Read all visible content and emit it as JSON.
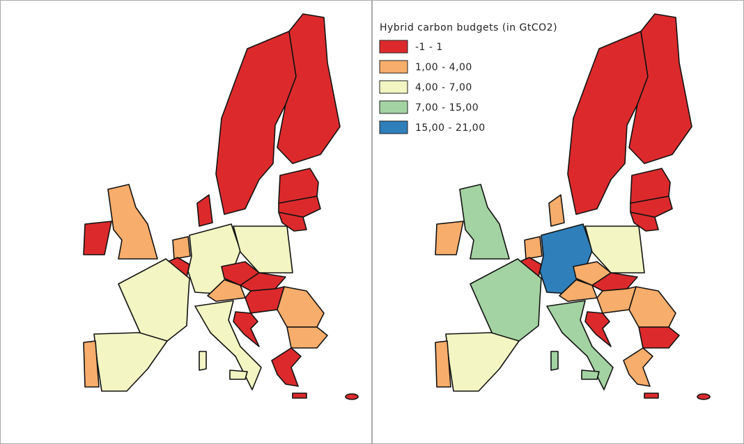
{
  "legend": {
    "title": "Hybrid carbon budgets (in GtCO2)",
    "classes": [
      {
        "label": "-1 - 1",
        "color": "#dc2a2c"
      },
      {
        "label": "1,00 - 4,00",
        "color": "#f7ad6b"
      },
      {
        "label": "4,00 - 7,00",
        "color": "#f3f5c2"
      },
      {
        "label": "7,00 - 15,00",
        "color": "#a3d3a2"
      },
      {
        "label": "15,00 - 21,00",
        "color": "#2f7fbb"
      }
    ]
  }
}
